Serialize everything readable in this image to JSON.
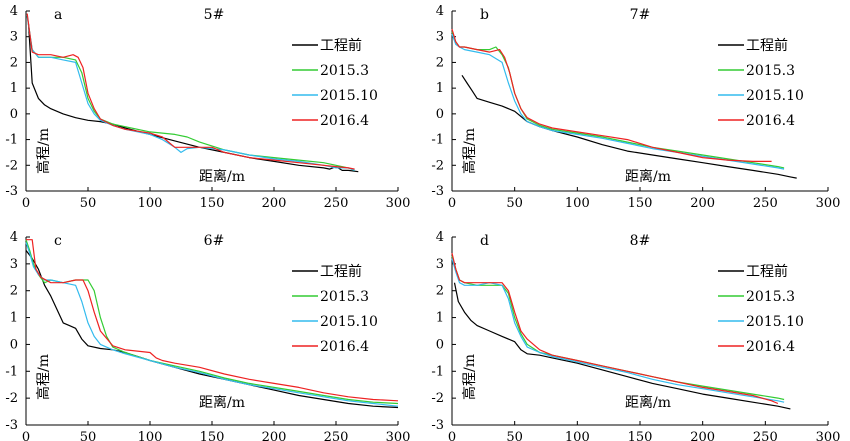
{
  "chart_data": [
    {
      "type": "line",
      "panel": "a",
      "title": "5#",
      "xlabel": "距离/m",
      "ylabel": "高程/m",
      "xlim": [
        0,
        300
      ],
      "ylim": [
        -3,
        4
      ],
      "xticks": [
        0,
        50,
        100,
        150,
        200,
        250,
        300
      ],
      "yticks": [
        -3,
        -2,
        -1,
        0,
        1,
        2,
        3,
        4
      ],
      "legend_position": "right",
      "series": [
        {
          "name": "工程前",
          "color": "#000000",
          "x": [
            2,
            5,
            10,
            15,
            20,
            30,
            40,
            50,
            60,
            70,
            80,
            100,
            120,
            140,
            160,
            180,
            200,
            220,
            240,
            245,
            250,
            255,
            260,
            268
          ],
          "y": [
            3.5,
            1.2,
            0.6,
            0.35,
            0.2,
            0.0,
            -0.15,
            -0.25,
            -0.3,
            -0.4,
            -0.55,
            -0.8,
            -1.05,
            -1.3,
            -1.5,
            -1.7,
            -1.85,
            -2.0,
            -2.1,
            -2.15,
            -2.05,
            -2.2,
            -2.2,
            -2.25
          ]
        },
        {
          "name": "2015.3",
          "color": "#33cc33",
          "x": [
            1,
            5,
            10,
            20,
            30,
            40,
            45,
            50,
            55,
            60,
            70,
            80,
            100,
            120,
            130,
            140,
            160,
            180,
            200,
            220,
            240,
            250,
            260,
            265
          ],
          "y": [
            3.8,
            2.5,
            2.2,
            2.2,
            2.2,
            2.1,
            1.6,
            0.6,
            0.1,
            -0.2,
            -0.4,
            -0.5,
            -0.7,
            -0.8,
            -0.9,
            -1.1,
            -1.4,
            -1.6,
            -1.7,
            -1.8,
            -1.9,
            -2.0,
            -2.1,
            -2.2
          ]
        },
        {
          "name": "2015.10",
          "color": "#33bbee",
          "x": [
            1,
            5,
            10,
            20,
            30,
            40,
            45,
            50,
            55,
            60,
            70,
            80,
            100,
            110,
            120,
            125,
            130,
            140,
            160,
            180,
            200,
            220,
            240,
            250,
            260,
            265
          ],
          "y": [
            3.8,
            2.5,
            2.2,
            2.2,
            2.1,
            2.0,
            1.2,
            0.4,
            0.0,
            -0.25,
            -0.45,
            -0.6,
            -0.8,
            -1.0,
            -1.3,
            -1.5,
            -1.35,
            -1.3,
            -1.4,
            -1.6,
            -1.75,
            -1.85,
            -2.0,
            -2.1,
            -2.1,
            -2.2
          ]
        },
        {
          "name": "2016.4",
          "color": "#ee2222",
          "x": [
            1,
            5,
            10,
            20,
            30,
            38,
            42,
            46,
            50,
            55,
            60,
            70,
            80,
            100,
            110,
            120,
            140,
            150,
            160,
            180,
            200,
            220,
            240,
            250,
            260,
            265
          ],
          "y": [
            3.9,
            2.4,
            2.3,
            2.3,
            2.2,
            2.3,
            2.2,
            1.8,
            0.8,
            0.2,
            -0.2,
            -0.45,
            -0.6,
            -0.75,
            -0.9,
            -1.3,
            -1.3,
            -1.3,
            -1.5,
            -1.7,
            -1.8,
            -1.9,
            -2.0,
            -2.05,
            -2.1,
            -2.15
          ]
        }
      ]
    },
    {
      "type": "line",
      "panel": "b",
      "title": "7#",
      "xlabel": "距离/m",
      "ylabel": "高程/m",
      "xlim": [
        0,
        300
      ],
      "ylim": [
        -3,
        4
      ],
      "xticks": [
        0,
        50,
        100,
        150,
        200,
        250,
        300
      ],
      "yticks": [
        -3,
        -2,
        -1,
        0,
        1,
        2,
        3,
        4
      ],
      "legend_position": "right",
      "series": [
        {
          "name": "工程前",
          "color": "#000000",
          "x": [
            8,
            12,
            16,
            20,
            30,
            40,
            50,
            60,
            70,
            80,
            100,
            120,
            140,
            160,
            180,
            200,
            220,
            240,
            260,
            270,
            275
          ],
          "y": [
            1.5,
            1.2,
            0.9,
            0.6,
            0.45,
            0.3,
            0.1,
            -0.3,
            -0.5,
            -0.65,
            -0.9,
            -1.2,
            -1.45,
            -1.6,
            -1.75,
            -1.9,
            -2.05,
            -2.2,
            -2.35,
            -2.45,
            -2.5
          ]
        },
        {
          "name": "2015.3",
          "color": "#33cc33",
          "x": [
            0,
            3,
            6,
            10,
            20,
            30,
            35,
            40,
            45,
            50,
            55,
            60,
            70,
            80,
            100,
            120,
            140,
            160,
            180,
            200,
            220,
            240,
            260,
            265
          ],
          "y": [
            3.2,
            2.8,
            2.6,
            2.6,
            2.5,
            2.5,
            2.6,
            2.3,
            1.8,
            0.8,
            0.2,
            -0.2,
            -0.45,
            -0.6,
            -0.75,
            -0.9,
            -1.1,
            -1.3,
            -1.45,
            -1.6,
            -1.75,
            -1.9,
            -2.05,
            -2.1
          ]
        },
        {
          "name": "2015.10",
          "color": "#33bbee",
          "x": [
            0,
            3,
            6,
            10,
            20,
            30,
            40,
            45,
            50,
            55,
            60,
            70,
            80,
            100,
            120,
            140,
            160,
            180,
            200,
            220,
            240,
            260,
            265
          ],
          "y": [
            3.1,
            2.7,
            2.6,
            2.5,
            2.4,
            2.3,
            2.0,
            1.2,
            0.5,
            0.0,
            -0.3,
            -0.5,
            -0.65,
            -0.8,
            -0.95,
            -1.15,
            -1.35,
            -1.5,
            -1.65,
            -1.8,
            -1.95,
            -2.1,
            -2.15
          ]
        },
        {
          "name": "2016.4",
          "color": "#ee2222",
          "x": [
            0,
            3,
            6,
            10,
            20,
            30,
            38,
            42,
            46,
            50,
            55,
            60,
            70,
            80,
            100,
            120,
            140,
            160,
            180,
            200,
            220,
            240,
            255
          ],
          "y": [
            3.3,
            2.8,
            2.6,
            2.6,
            2.5,
            2.4,
            2.5,
            2.2,
            1.6,
            0.8,
            0.2,
            -0.15,
            -0.4,
            -0.55,
            -0.7,
            -0.85,
            -1.0,
            -1.3,
            -1.5,
            -1.7,
            -1.8,
            -1.85,
            -1.85
          ]
        }
      ]
    },
    {
      "type": "line",
      "panel": "c",
      "title": "6#",
      "xlabel": "距离/m",
      "ylabel": "高程/m",
      "xlim": [
        0,
        300
      ],
      "ylim": [
        -3,
        4
      ],
      "xticks": [
        0,
        50,
        100,
        150,
        200,
        250,
        300
      ],
      "yticks": [
        -3,
        -2,
        -1,
        0,
        1,
        2,
        3,
        4
      ],
      "legend_position": "right",
      "series": [
        {
          "name": "工程前",
          "color": "#000000",
          "x": [
            0,
            5,
            10,
            15,
            20,
            25,
            30,
            35,
            40,
            45,
            50,
            60,
            70,
            80,
            100,
            120,
            140,
            160,
            180,
            200,
            220,
            240,
            260,
            280,
            300
          ],
          "y": [
            3.5,
            3.2,
            2.8,
            2.2,
            1.8,
            1.3,
            0.8,
            0.7,
            0.6,
            0.2,
            -0.05,
            -0.15,
            -0.2,
            -0.3,
            -0.6,
            -0.85,
            -1.1,
            -1.3,
            -1.5,
            -1.7,
            -1.9,
            -2.05,
            -2.2,
            -2.3,
            -2.35
          ]
        },
        {
          "name": "2015.3",
          "color": "#33cc33",
          "x": [
            0,
            3,
            6,
            10,
            15,
            20,
            30,
            40,
            50,
            55,
            60,
            65,
            70,
            80,
            100,
            120,
            140,
            160,
            180,
            200,
            220,
            240,
            260,
            280,
            300
          ],
          "y": [
            3.9,
            3.5,
            3.0,
            2.6,
            2.3,
            2.4,
            2.3,
            2.4,
            2.4,
            2.0,
            1.0,
            0.3,
            -0.1,
            -0.3,
            -0.6,
            -0.8,
            -1.0,
            -1.25,
            -1.45,
            -1.6,
            -1.75,
            -1.9,
            -2.05,
            -2.15,
            -2.2
          ]
        },
        {
          "name": "2015.10",
          "color": "#33bbee",
          "x": [
            0,
            3,
            6,
            10,
            15,
            20,
            30,
            40,
            45,
            50,
            55,
            60,
            70,
            80,
            100,
            120,
            140,
            160,
            180,
            200,
            220,
            240,
            260,
            280,
            300
          ],
          "y": [
            3.8,
            3.4,
            2.9,
            2.6,
            2.4,
            2.4,
            2.3,
            2.2,
            1.6,
            0.8,
            0.3,
            0.0,
            -0.2,
            -0.35,
            -0.6,
            -0.85,
            -1.05,
            -1.3,
            -1.5,
            -1.65,
            -1.8,
            -1.95,
            -2.1,
            -2.2,
            -2.3
          ]
        },
        {
          "name": "2016.4",
          "color": "#ee2222",
          "x": [
            0,
            5,
            8,
            12,
            20,
            30,
            40,
            46,
            50,
            55,
            60,
            70,
            80,
            100,
            105,
            110,
            120,
            140,
            160,
            180,
            200,
            220,
            240,
            260,
            280,
            300
          ],
          "y": [
            3.9,
            3.9,
            2.8,
            2.5,
            2.3,
            2.3,
            2.4,
            2.4,
            2.0,
            1.2,
            0.5,
            -0.05,
            -0.2,
            -0.3,
            -0.5,
            -0.6,
            -0.7,
            -0.85,
            -1.1,
            -1.3,
            -1.45,
            -1.6,
            -1.8,
            -1.95,
            -2.05,
            -2.1
          ]
        }
      ]
    },
    {
      "type": "line",
      "panel": "d",
      "title": "8#",
      "xlabel": "距离/m",
      "ylabel": "高程/m",
      "xlim": [
        0,
        300
      ],
      "ylim": [
        -3,
        4
      ],
      "xticks": [
        0,
        50,
        100,
        150,
        200,
        250,
        300
      ],
      "yticks": [
        -3,
        -2,
        -1,
        0,
        1,
        2,
        3,
        4
      ],
      "legend_position": "right",
      "series": [
        {
          "name": "工程前",
          "color": "#000000",
          "x": [
            2,
            5,
            10,
            15,
            20,
            30,
            40,
            50,
            55,
            60,
            70,
            80,
            100,
            120,
            140,
            160,
            180,
            200,
            220,
            240,
            260,
            270
          ],
          "y": [
            2.3,
            1.6,
            1.2,
            0.9,
            0.7,
            0.5,
            0.3,
            0.1,
            -0.2,
            -0.35,
            -0.4,
            -0.5,
            -0.7,
            -0.95,
            -1.2,
            -1.45,
            -1.65,
            -1.85,
            -2.0,
            -2.15,
            -2.3,
            -2.4
          ]
        },
        {
          "name": "2015.3",
          "color": "#33cc33",
          "x": [
            0,
            3,
            6,
            10,
            20,
            30,
            40,
            45,
            50,
            55,
            60,
            70,
            80,
            100,
            120,
            140,
            160,
            180,
            200,
            220,
            240,
            260,
            265
          ],
          "y": [
            3.3,
            2.8,
            2.4,
            2.3,
            2.2,
            2.2,
            2.2,
            1.9,
            1.0,
            0.4,
            0.0,
            -0.3,
            -0.4,
            -0.6,
            -0.8,
            -1.0,
            -1.2,
            -1.4,
            -1.55,
            -1.7,
            -1.85,
            -2.0,
            -2.05
          ]
        },
        {
          "name": "2015.10",
          "color": "#33bbee",
          "x": [
            0,
            3,
            6,
            10,
            20,
            30,
            40,
            45,
            50,
            55,
            60,
            70,
            80,
            100,
            120,
            140,
            160,
            180,
            200,
            220,
            240,
            260,
            265
          ],
          "y": [
            3.2,
            2.7,
            2.3,
            2.2,
            2.2,
            2.3,
            2.2,
            1.7,
            0.8,
            0.3,
            -0.1,
            -0.3,
            -0.45,
            -0.65,
            -0.85,
            -1.05,
            -1.3,
            -1.5,
            -1.65,
            -1.8,
            -1.95,
            -2.1,
            -2.15
          ]
        },
        {
          "name": "2016.4",
          "color": "#ee2222",
          "x": [
            0,
            3,
            6,
            10,
            20,
            30,
            40,
            45,
            50,
            55,
            60,
            70,
            80,
            100,
            120,
            140,
            160,
            180,
            200,
            220,
            240,
            255,
            260
          ],
          "y": [
            3.4,
            2.8,
            2.4,
            2.3,
            2.3,
            2.3,
            2.3,
            2.0,
            1.2,
            0.5,
            0.2,
            -0.2,
            -0.4,
            -0.6,
            -0.8,
            -1.0,
            -1.2,
            -1.4,
            -1.6,
            -1.75,
            -1.9,
            -2.1,
            -2.2
          ]
        }
      ]
    }
  ]
}
